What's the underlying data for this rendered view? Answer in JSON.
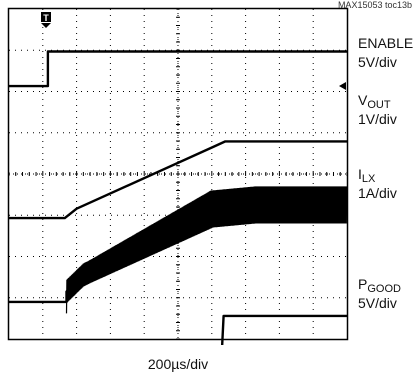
{
  "figure_id": "MAX15053 toc13b",
  "timebase": "200µs/div",
  "trigger_marker": "T",
  "channels": [
    {
      "name": "ENABLE",
      "name_sub": "",
      "scale": "5V/div"
    },
    {
      "name": "V",
      "name_sub": "OUT",
      "scale": "1V/div"
    },
    {
      "name": "I",
      "name_sub": "LX",
      "scale": "1A/div"
    },
    {
      "name": "P",
      "name_sub": "GOOD",
      "scale": "5V/div"
    }
  ],
  "chart_data": {
    "type": "line",
    "title": "",
    "xlabel": "200µs/div",
    "x_divisions": 10,
    "y_divisions": 8,
    "grid": true,
    "x_unit": "div",
    "series": [
      {
        "name": "ENABLE",
        "scale": "5V/div",
        "ground_div": 6.13,
        "color": "#000000",
        "points": [
          [
            0,
            0
          ],
          [
            1.15,
            0
          ],
          [
            1.15,
            0.84
          ],
          [
            10,
            0.84
          ]
        ]
      },
      {
        "name": "VOUT",
        "scale": "1V/div",
        "ground_div": 2.93,
        "color": "#000000",
        "points": [
          [
            0,
            0
          ],
          [
            1.65,
            0
          ],
          [
            2.0,
            0.23
          ],
          [
            6.1,
            1.75
          ],
          [
            6.4,
            1.86
          ],
          [
            10,
            1.86
          ]
        ]
      },
      {
        "name": "ILX",
        "scale": "1A/div",
        "ground_div": 0.9,
        "color": "#000000",
        "ripple": true,
        "points": [
          [
            0,
            0
          ],
          [
            1.7,
            0
          ],
          [
            1.7,
            0.25
          ],
          [
            2.2,
            0.65
          ],
          [
            6.0,
            2.25
          ],
          [
            7.3,
            2.35
          ],
          [
            10,
            2.35
          ]
        ]
      },
      {
        "name": "PGOOD",
        "scale": "5V/div",
        "ground_div": -0.28,
        "color": "#000000",
        "points": [
          [
            0,
            0
          ],
          [
            6.3,
            0
          ],
          [
            6.35,
            0.84
          ],
          [
            10,
            0.84
          ]
        ]
      }
    ]
  }
}
